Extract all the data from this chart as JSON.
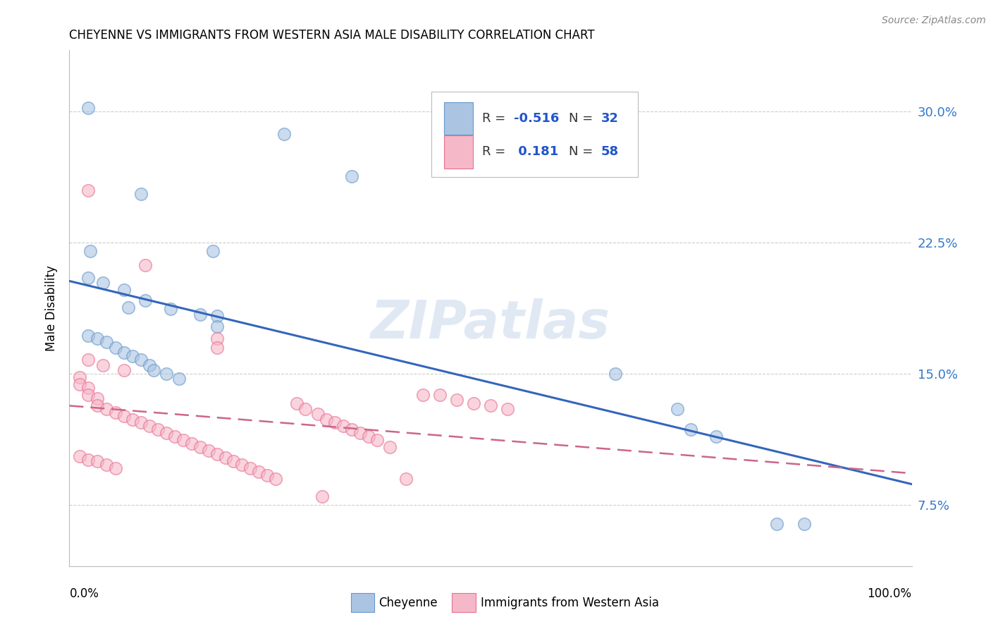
{
  "title": "CHEYENNE VS IMMIGRANTS FROM WESTERN ASIA MALE DISABILITY CORRELATION CHART",
  "source": "Source: ZipAtlas.com",
  "ylabel": "Male Disability",
  "xlim": [
    0.0,
    1.0
  ],
  "ylim": [
    0.04,
    0.335
  ],
  "cheyenne_color": "#aac4e2",
  "cheyenne_edge_color": "#6699cc",
  "immigrants_color": "#f5b8c8",
  "immigrants_edge_color": "#e87090",
  "cheyenne_line_color": "#3366bb",
  "immigrants_line_color": "#cc6688",
  "watermark": "ZIPatlas",
  "cheyenne_x": [
    0.022,
    0.085,
    0.255,
    0.335,
    0.025,
    0.17,
    0.022,
    0.04,
    0.065,
    0.07,
    0.09,
    0.12,
    0.155,
    0.175,
    0.175,
    0.022,
    0.033,
    0.044,
    0.055,
    0.065,
    0.075,
    0.085,
    0.095,
    0.1,
    0.115,
    0.13,
    0.648,
    0.722,
    0.738,
    0.768,
    0.84,
    0.872
  ],
  "cheyenne_y": [
    0.302,
    0.253,
    0.287,
    0.263,
    0.22,
    0.22,
    0.205,
    0.202,
    0.198,
    0.188,
    0.192,
    0.187,
    0.184,
    0.183,
    0.177,
    0.172,
    0.17,
    0.168,
    0.165,
    0.162,
    0.16,
    0.158,
    0.155,
    0.152,
    0.15,
    0.147,
    0.15,
    0.13,
    0.118,
    0.114,
    0.064,
    0.064
  ],
  "immigrants_x": [
    0.022,
    0.09,
    0.175,
    0.175,
    0.022,
    0.04,
    0.065,
    0.012,
    0.012,
    0.022,
    0.022,
    0.033,
    0.033,
    0.044,
    0.055,
    0.065,
    0.075,
    0.085,
    0.095,
    0.105,
    0.115,
    0.125,
    0.135,
    0.145,
    0.155,
    0.165,
    0.175,
    0.185,
    0.195,
    0.205,
    0.215,
    0.225,
    0.235,
    0.245,
    0.27,
    0.28,
    0.295,
    0.305,
    0.315,
    0.325,
    0.335,
    0.345,
    0.355,
    0.365,
    0.38,
    0.4,
    0.42,
    0.44,
    0.46,
    0.48,
    0.5,
    0.52,
    0.3,
    0.012,
    0.022,
    0.033,
    0.044,
    0.055
  ],
  "immigrants_y": [
    0.255,
    0.212,
    0.17,
    0.165,
    0.158,
    0.155,
    0.152,
    0.148,
    0.144,
    0.142,
    0.138,
    0.136,
    0.132,
    0.13,
    0.128,
    0.126,
    0.124,
    0.122,
    0.12,
    0.118,
    0.116,
    0.114,
    0.112,
    0.11,
    0.108,
    0.106,
    0.104,
    0.102,
    0.1,
    0.098,
    0.096,
    0.094,
    0.092,
    0.09,
    0.133,
    0.13,
    0.127,
    0.124,
    0.122,
    0.12,
    0.118,
    0.116,
    0.114,
    0.112,
    0.108,
    0.09,
    0.138,
    0.138,
    0.135,
    0.133,
    0.132,
    0.13,
    0.08,
    0.103,
    0.101,
    0.1,
    0.098,
    0.096
  ],
  "legend_R1": "-0.516",
  "legend_N1": "32",
  "legend_R2": "0.181",
  "legend_N2": "58"
}
